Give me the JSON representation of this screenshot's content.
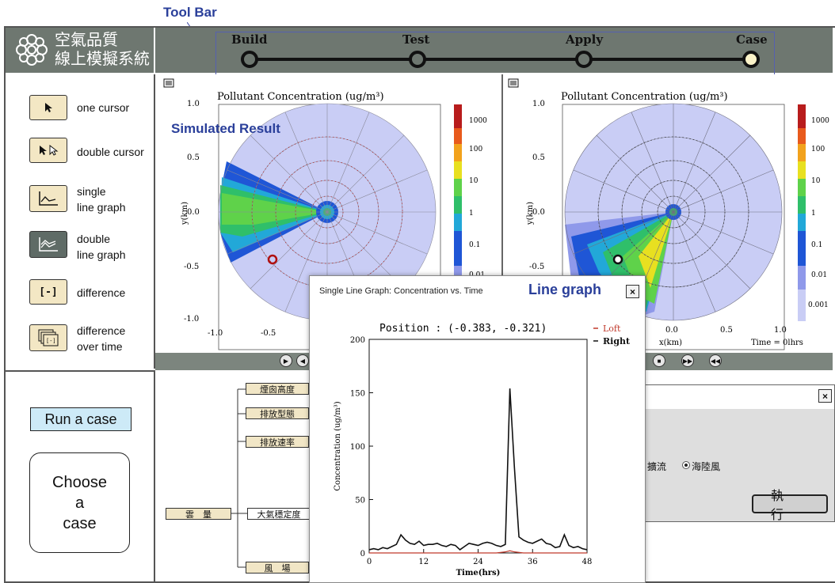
{
  "annotations": {
    "toolbar": "Tool Bar",
    "simulated_result": "Simulated Result",
    "line_graph": "Line graph"
  },
  "app": {
    "logo_line1": "空氣品質",
    "logo_line2": "線上模擬系統"
  },
  "nav": {
    "steps": [
      "Build",
      "Test",
      "Apply",
      "Case"
    ]
  },
  "tools": {
    "one_cursor": "one cursor",
    "double_cursor": "double cursor",
    "single_line_graph_1": "single",
    "single_line_graph_2": "line graph",
    "double_line_graph_1": "double",
    "double_line_graph_2": "line graph",
    "difference": "difference",
    "difference_over_time_1": "difference",
    "difference_over_time_2": "over time",
    "difference_icon": "[-]"
  },
  "actions": {
    "run_case": "Run a case",
    "choose_case_1": "Choose",
    "choose_case_2": "a",
    "choose_case_3": "case"
  },
  "left_plot": {
    "title": "Pollutant Concentration (ug/m³)",
    "ylabel": "y(km)",
    "yticks": [
      "1.0",
      "0.5",
      "0.0",
      "-0.5",
      "-1.0"
    ],
    "xticks": [
      "-1.0",
      "-0.5"
    ],
    "colorbar": [
      "1000",
      "100",
      "10",
      "1",
      "0.1",
      "0.01"
    ]
  },
  "right_plot": {
    "title": "Pollutant Concentration (ug/m³)",
    "ylabel": "y(km)",
    "yticks": [
      "1.0",
      "0.5",
      "0.0",
      "-0.5"
    ],
    "xticks": [
      "0.0",
      "0.5",
      "1.0"
    ],
    "xlabel": "x(km)",
    "colorbar": [
      "1000",
      "100",
      "10",
      "1",
      "0.1",
      "0.01",
      "0.001"
    ],
    "time": "Time = 0lhrs"
  },
  "flow": {
    "nodes": [
      "煙囪高度",
      "排放型態",
      "排放速率",
      "雲　量",
      "大氣穩定度",
      "風　場"
    ]
  },
  "dialog2": {
    "radio1": "擴流",
    "radio2": "海陸風",
    "execute": "執 行",
    "close": "×"
  },
  "popup": {
    "title": "Single Line Graph: Concentration vs. Time",
    "close": "×"
  },
  "chart_data": {
    "type": "line",
    "title": "Position : (-0.383, -0.321)",
    "xlabel": "Time(hrs)",
    "ylabel": "Concentration (ug/m³)",
    "xlim": [
      0,
      48
    ],
    "ylim": [
      0,
      200
    ],
    "xticks": [
      "0",
      "12",
      "24",
      "36",
      "48"
    ],
    "yticks": [
      "0",
      "50",
      "100",
      "150",
      "200"
    ],
    "legend_position": "top-right",
    "series": [
      {
        "name": "Loft",
        "color": "#c0392b",
        "x": [
          0,
          10,
          20,
          28,
          30,
          31,
          32,
          34,
          40,
          48
        ],
        "y": [
          0,
          0,
          0,
          0,
          1,
          2,
          1,
          0,
          0,
          0
        ]
      },
      {
        "name": "Right",
        "color": "#111111",
        "x": [
          0,
          1,
          2,
          3,
          4,
          5,
          6,
          7,
          8,
          9,
          10,
          11,
          12,
          13,
          14,
          15,
          16,
          17,
          18,
          19,
          20,
          21,
          22,
          23,
          24,
          25,
          26,
          27,
          28,
          29,
          30,
          31,
          32,
          33,
          34,
          35,
          36,
          37,
          38,
          39,
          40,
          41,
          42,
          43,
          44,
          45,
          46,
          47,
          48
        ],
        "y": [
          3,
          4,
          3,
          5,
          4,
          6,
          8,
          17,
          12,
          9,
          8,
          11,
          7,
          8,
          8,
          9,
          7,
          6,
          8,
          7,
          3,
          6,
          9,
          8,
          7,
          9,
          10,
          9,
          7,
          6,
          8,
          154,
          80,
          15,
          12,
          10,
          9,
          11,
          13,
          9,
          8,
          5,
          6,
          17,
          7,
          5,
          6,
          4,
          3
        ]
      }
    ]
  }
}
